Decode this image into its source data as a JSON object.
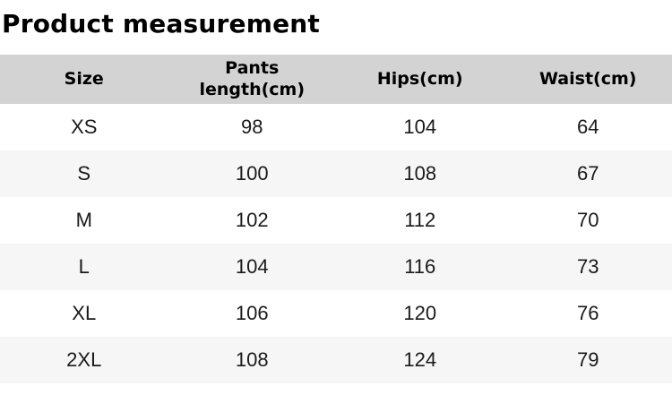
{
  "page": {
    "title": "Product measurement"
  },
  "table": {
    "columns": [
      "Size",
      "Pants length(cm)",
      "Hips(cm)",
      "Waist(cm)"
    ],
    "rows": [
      {
        "size": "XS",
        "pants_length_cm": "98",
        "hips_cm": "104",
        "waist_cm": "64"
      },
      {
        "size": "S",
        "pants_length_cm": "100",
        "hips_cm": "108",
        "waist_cm": "67"
      },
      {
        "size": "M",
        "pants_length_cm": "102",
        "hips_cm": "112",
        "waist_cm": "70"
      },
      {
        "size": "L",
        "pants_length_cm": "104",
        "hips_cm": "116",
        "waist_cm": "73"
      },
      {
        "size": "XL",
        "pants_length_cm": "106",
        "hips_cm": "120",
        "waist_cm": "76"
      },
      {
        "size": "2XL",
        "pants_length_cm": "108",
        "hips_cm": "124",
        "waist_cm": "79"
      }
    ],
    "colors": {
      "header_bg": "#d3d3d3",
      "row_bg": "#ffffff",
      "row_alt_bg": "#f6f6f6",
      "text": "#1a1a1a"
    }
  }
}
